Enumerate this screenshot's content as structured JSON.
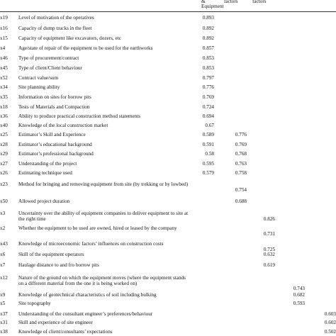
{
  "header": {
    "col1_line1": "&",
    "col1_line2": "Equipment",
    "col2": "factors",
    "col3": "factors"
  },
  "rows": [
    {
      "code": "x19",
      "variable": "Level of motivation of the operatives",
      "v1": "0.893",
      "v2": "",
      "v3": "",
      "v4": "",
      "v5": ""
    },
    {
      "code": "x16",
      "variable": "Capacity of dump trucks in the fleet",
      "v1": "0.892",
      "v2": "",
      "v3": "",
      "v4": "",
      "v5": ""
    },
    {
      "code": "x15",
      "variable": "Capacity of equipment like excavators, dozers, etc",
      "v1": "0.892",
      "v2": "",
      "v3": "",
      "v4": "",
      "v5": ""
    },
    {
      "code": "x4",
      "variable": "Age/state of repair of the equipment to be used for the earthworks",
      "v1": "0.857",
      "v2": "",
      "v3": "",
      "v4": "",
      "v5": ""
    },
    {
      "code": "x46",
      "variable": "Type of procurement/contract",
      "v1": "0.853",
      "v2": "",
      "v3": "",
      "v4": "",
      "v5": ""
    },
    {
      "code": "x45",
      "variable": "Type of client/Client behaviour",
      "v1": "0.853",
      "v2": "",
      "v3": "",
      "v4": "",
      "v5": ""
    },
    {
      "code": "x52",
      "variable": "Contract value/sum",
      "v1": "0.797",
      "v2": "",
      "v3": "",
      "v4": "",
      "v5": ""
    },
    {
      "code": "x34",
      "variable": "Site planning ability",
      "v1": "0.776",
      "v2": "",
      "v3": "",
      "v4": "",
      "v5": ""
    },
    {
      "code": "x35",
      "variable": "Information on sites for borrow pits",
      "v1": "0.769",
      "v2": "",
      "v3": "",
      "v4": "",
      "v5": ""
    },
    {
      "code": "x18",
      "variable": "Tests of Materials and Compaction",
      "v1": "0.724",
      "v2": "",
      "v3": "",
      "v4": "",
      "v5": ""
    },
    {
      "code": "x36",
      "variable": "Ability to produce practical construction method statements",
      "v1": "0.694",
      "v2": "",
      "v3": "",
      "v4": "",
      "v5": ""
    },
    {
      "code": "x40",
      "variable": "Knowledge of the local construction market",
      "v1": "0.67",
      "v2": "",
      "v3": "",
      "v4": "",
      "v5": ""
    },
    {
      "code": "x25",
      "variable": "Estimator’s Skill and Experience",
      "v1": "0.589",
      "v2": "0.776",
      "v3": "",
      "v4": "",
      "v5": ""
    },
    {
      "code": "x28",
      "variable": "Estimator’s educational background",
      "v1": "0.591",
      "v2": "0.769",
      "v3": "",
      "v4": "",
      "v5": ""
    },
    {
      "code": "x29",
      "variable": "Estimator’s professional background",
      "v1": "0.58",
      "v2": "0.768",
      "v3": "",
      "v4": "",
      "v5": ""
    },
    {
      "code": "x27",
      "variable": "Understanding of the project",
      "v1": "0.595",
      "v2": "0.763",
      "v3": "",
      "v4": "",
      "v5": ""
    },
    {
      "code": "x26",
      "variable": "Estimating technique used",
      "v1": "0.579",
      "v2": "0.758",
      "v3": "",
      "v4": "",
      "v5": ""
    },
    {
      "code": "x23",
      "variable": "Method for bringing and removing equipment from site (by trekking or by lowbed)",
      "v1": "",
      "v2": "0.754",
      "v3": "",
      "v4": "",
      "v5": ""
    },
    {
      "code": "x50",
      "variable": "Allowed project duration",
      "v1": "",
      "v2": "0.688",
      "v3": "",
      "v4": "",
      "v5": ""
    },
    {
      "code": "x3",
      "variable": "Uncertainty over the ability of equipment companies to deliver equipment to site at the right time",
      "v1": "",
      "v2": "",
      "v3": "0.826",
      "v4": "",
      "v5": ""
    },
    {
      "code": "x2",
      "variable": "Whether the equipment to be used are owned, hired or leased by the company",
      "v1": "",
      "v2": "",
      "v3": "0.731",
      "v4": "",
      "v5": ""
    },
    {
      "code": "x43",
      "variable": "Knowledge of microeconomic factors’ influences on construction costs",
      "v1": "",
      "v2": "",
      "v3": "0.725",
      "v4": "",
      "v5": ""
    },
    {
      "code": "x6",
      "variable": "Skill of the equipment operators",
      "v1": "",
      "v2": "",
      "v3": "0.632",
      "v4": "",
      "v5": ""
    },
    {
      "code": "x7",
      "variable": "Haulage distance to and fro borrow pits",
      "v1": "",
      "v2": "",
      "v3": "0.619",
      "v4": "",
      "v5": ""
    },
    {
      "code": "x12",
      "variable": "Nature of the ground on which the equipment moves (where the equipment stands on a different material from the one it is being worked on)",
      "v1": "",
      "v2": "",
      "v3": "",
      "v4": "0.743",
      "v5": ""
    },
    {
      "code": "x9",
      "variable": "Knowledge of geotechnical characteristics of soil including bulking",
      "v1": "",
      "v2": "",
      "v3": "",
      "v4": "0.682",
      "v5": ""
    },
    {
      "code": "x5",
      "variable": "Site topography",
      "v1": "",
      "v2": "",
      "v3": "",
      "v4": "0.593",
      "v5": ""
    },
    {
      "code": "x37",
      "variable": "Understanding of the consultant engineer’s preferences/behaviour",
      "v1": "",
      "v2": "",
      "v3": "",
      "v4": "",
      "v5": "0.603"
    },
    {
      "code": "x31",
      "variable": "Skill and experience of site engineer",
      "v1": "",
      "v2": "",
      "v3": "",
      "v4": "",
      "v5": "0.602"
    },
    {
      "code": "x38",
      "variable": "Knowledge of client/consultants’ expectations",
      "v1": "",
      "v2": "",
      "v3": "",
      "v4": "",
      "v5": "0.502"
    }
  ]
}
